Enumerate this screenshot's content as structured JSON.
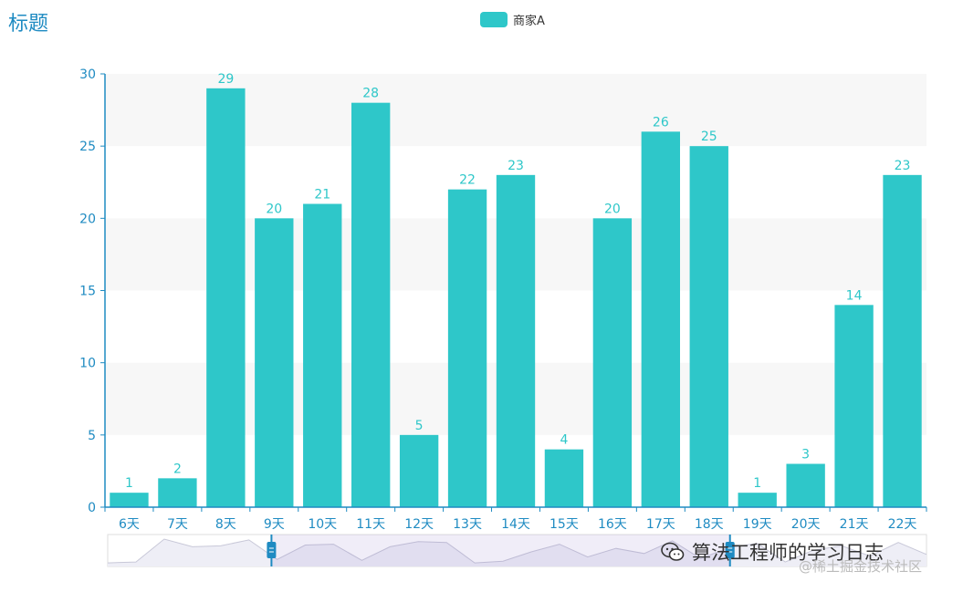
{
  "chart_data": {
    "type": "bar",
    "title": "标题",
    "legend": {
      "entries": [
        "商家A"
      ],
      "placement": "top-center"
    },
    "categories": [
      "6天",
      "7天",
      "8天",
      "9天",
      "10天",
      "11天",
      "12天",
      "13天",
      "14天",
      "15天",
      "16天",
      "17天",
      "18天",
      "19天",
      "20天",
      "21天",
      "22天"
    ],
    "series": [
      {
        "name": "商家A",
        "values": [
          1,
          2,
          29,
          20,
          21,
          28,
          5,
          22,
          23,
          4,
          20,
          26,
          25,
          1,
          3,
          14,
          23
        ]
      }
    ],
    "ylim": [
      0,
      30
    ],
    "yticks": [
      0,
      5,
      10,
      15,
      20,
      25,
      30
    ],
    "xlabel": "",
    "ylabel": "",
    "split_area": true,
    "data_zoom": {
      "type": "slider",
      "start": 20,
      "end": 76,
      "preview_values": [
        1,
        2,
        29,
        20,
        21,
        28,
        5,
        22,
        23,
        4,
        20,
        26,
        25,
        1,
        3,
        14,
        23,
        8,
        18,
        12,
        27,
        6,
        19,
        24,
        2,
        16,
        21,
        9,
        25,
        11
      ]
    }
  },
  "colors": {
    "bar": "#2ec7c9",
    "axis": "#1f8bc2",
    "title": "#1f8bc2"
  },
  "watermark": {
    "line1": "算法工程师的学习日志",
    "line2": "@稀土掘金技术社区"
  }
}
